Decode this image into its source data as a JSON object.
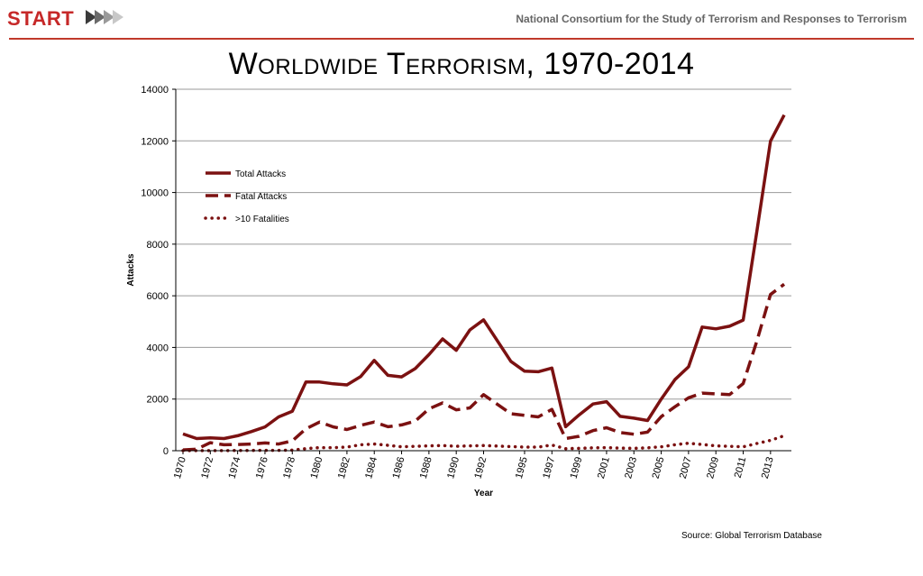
{
  "header": {
    "logo_text": "START",
    "organization": "National Consortium for the Study of Terrorism and Responses to Terrorism"
  },
  "colors": {
    "accent": "#c62828",
    "series": "#7b1111"
  },
  "footer": {
    "source": "Source: Global Terrorism Database"
  },
  "chart_data": {
    "type": "line",
    "title": "Worldwide Terrorism, 1970-2014",
    "xlabel": "Year",
    "ylabel": "Attacks",
    "ylim": [
      0,
      14000
    ],
    "yticks": [
      0,
      2000,
      4000,
      6000,
      8000,
      10000,
      12000,
      14000
    ],
    "xticks": [
      1970,
      1972,
      1974,
      1976,
      1978,
      1980,
      1982,
      1984,
      1986,
      1988,
      1990,
      1992,
      1995,
      1997,
      1999,
      2001,
      2003,
      2005,
      2007,
      2009,
      2011,
      2013
    ],
    "grid": true,
    "legend_position": "upper-left",
    "x": [
      1970,
      1971,
      1972,
      1973,
      1974,
      1975,
      1976,
      1977,
      1978,
      1979,
      1980,
      1981,
      1982,
      1983,
      1984,
      1985,
      1986,
      1987,
      1988,
      1989,
      1990,
      1991,
      1992,
      1994,
      1995,
      1996,
      1997,
      1998,
      1999,
      2000,
      2001,
      2002,
      2003,
      2004,
      2005,
      2006,
      2007,
      2008,
      2009,
      2010,
      2011,
      2012,
      2013,
      2014
    ],
    "series": [
      {
        "name": "Total Attacks",
        "style": "solid",
        "values": [
          650,
          470,
          500,
          470,
          580,
          740,
          920,
          1310,
          1530,
          2660,
          2660,
          2590,
          2550,
          2870,
          3500,
          2920,
          2860,
          3180,
          3720,
          4330,
          3890,
          4680,
          5070,
          3460,
          3080,
          3060,
          3200,
          930,
          1390,
          1810,
          1900,
          1330,
          1260,
          1170,
          2000,
          2750,
          3250,
          4790,
          4720,
          4820,
          5060,
          8500,
          11990,
          13000
        ]
      },
      {
        "name": "Fatal Attacks",
        "style": "dashed",
        "values": [
          30,
          60,
          310,
          230,
          240,
          260,
          300,
          260,
          380,
          850,
          1110,
          920,
          820,
          980,
          1110,
          930,
          1000,
          1150,
          1620,
          1850,
          1580,
          1660,
          2170,
          1430,
          1370,
          1310,
          1600,
          470,
          560,
          780,
          890,
          700,
          640,
          720,
          1320,
          1700,
          2050,
          2230,
          2200,
          2170,
          2600,
          4250,
          6050,
          6450
        ]
      },
      {
        "name": ">10 Fatalities",
        "style": "dotted",
        "values": [
          5,
          5,
          5,
          5,
          10,
          10,
          15,
          15,
          20,
          80,
          120,
          120,
          140,
          230,
          260,
          210,
          150,
          170,
          190,
          200,
          170,
          190,
          200,
          160,
          140,
          140,
          220,
          80,
          90,
          110,
          120,
          100,
          90,
          110,
          150,
          230,
          290,
          240,
          190,
          170,
          150,
          280,
          400,
          580
        ]
      }
    ]
  }
}
